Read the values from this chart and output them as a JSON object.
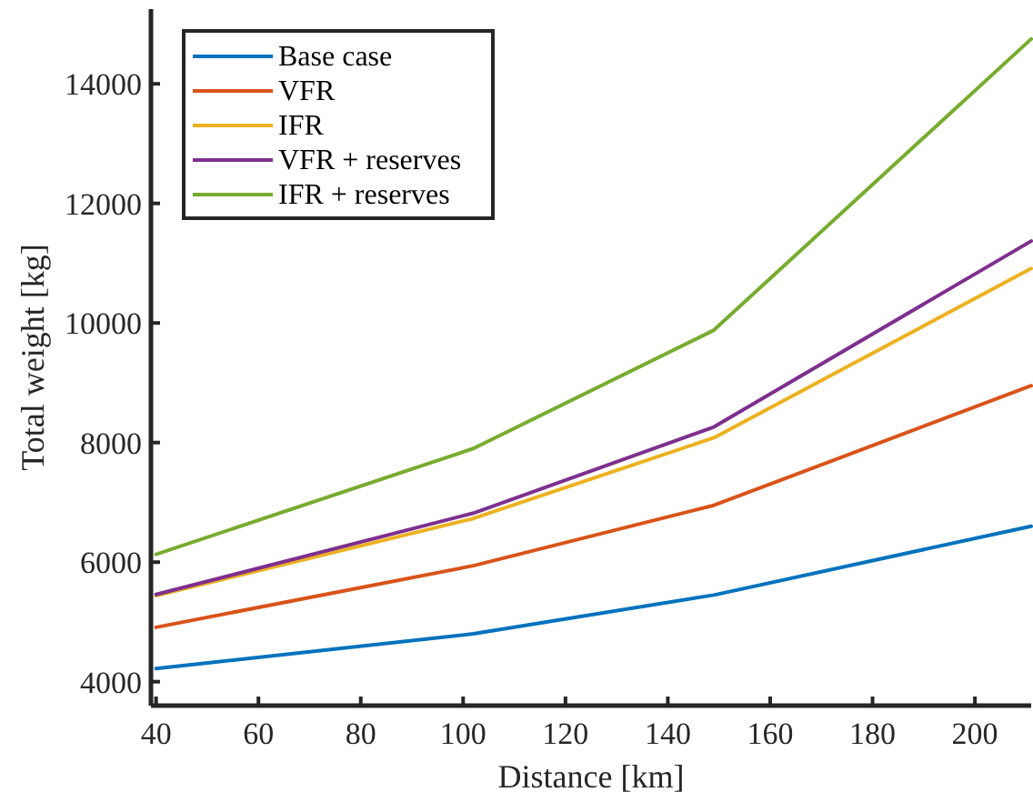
{
  "chart_data": {
    "type": "line",
    "xlabel": "Distance [km]",
    "ylabel": "Total weight [kg]",
    "x": [
      40,
      102,
      149,
      211
    ],
    "xlim": [
      39,
      211
    ],
    "xticks": [
      40,
      60,
      80,
      100,
      120,
      140,
      160,
      180,
      200
    ],
    "ylim": [
      3600,
      15250
    ],
    "yticks": [
      4000,
      6000,
      8000,
      10000,
      12000,
      14000
    ],
    "legend": "top left",
    "grid": false,
    "line_style": "solid",
    "marker": "none",
    "series": [
      {
        "name": "Base case",
        "color": "#0072bd",
        "values": [
          4220,
          4800,
          5450,
          6600
        ]
      },
      {
        "name": "VFR",
        "color": "#d95319",
        "values": [
          4910,
          5940,
          6950,
          8950
        ]
      },
      {
        "name": "IFR",
        "color": "#edb120",
        "values": [
          5440,
          6730,
          8080,
          10910
        ]
      },
      {
        "name": "VFR + reserves",
        "color": "#7e2f8e",
        "values": [
          5460,
          6820,
          8260,
          11370
        ]
      },
      {
        "name": "IFR + reserves",
        "color": "#77ac30",
        "values": [
          6130,
          7900,
          9880,
          14750
        ]
      }
    ]
  }
}
